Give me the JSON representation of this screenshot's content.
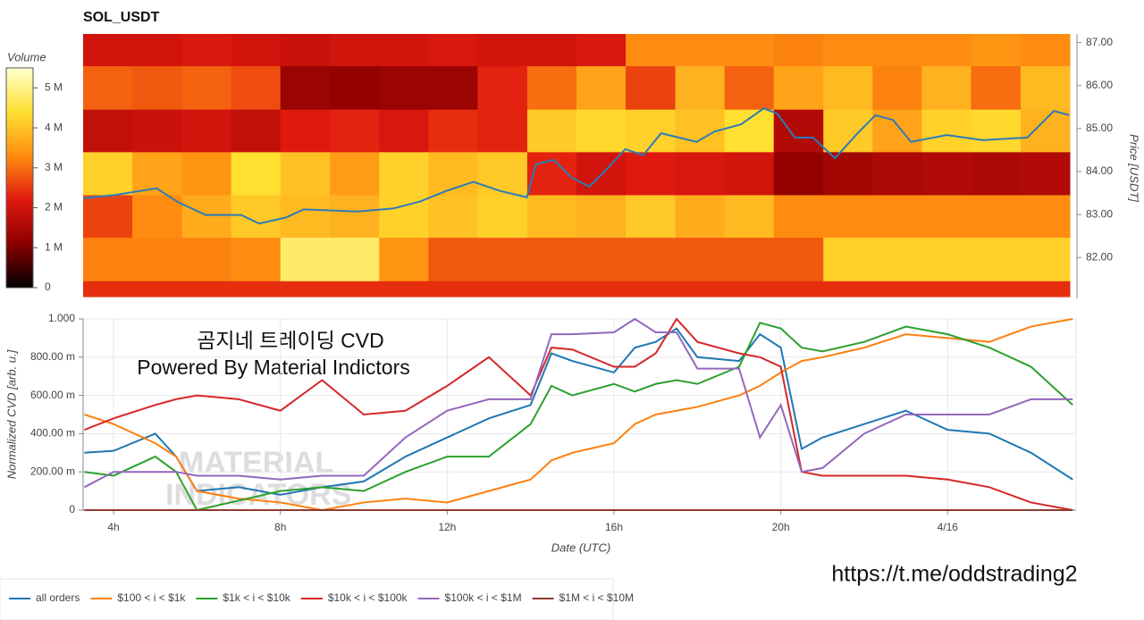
{
  "chart_data": [
    {
      "type": "heatmap",
      "title": "SOL_USDT",
      "x_bins": [
        3.27,
        4.45,
        5.64,
        6.82,
        8.0,
        9.19,
        10.37,
        11.55,
        12.73,
        13.92,
        15.1,
        16.28,
        17.47,
        18.65,
        19.83,
        21.02,
        22.2,
        23.38,
        24.56,
        25.75,
        26.93
      ],
      "y_bins": [
        81.09,
        81.46,
        82.47,
        83.46,
        84.46,
        85.45,
        86.46,
        87.2
      ],
      "values": [
        [
          2.4,
          2.4,
          2.4,
          2.4,
          2.4,
          2.4,
          2.4,
          2.4,
          2.4,
          2.4,
          2.4,
          2.4,
          2.4,
          2.4,
          2.4,
          2.4,
          2.4,
          2.4,
          2.4,
          2.4
        ],
        [
          3.2,
          3.2,
          3.2,
          3.3,
          4.8,
          4.8,
          3.4,
          2.8,
          2.8,
          2.8,
          2.8,
          2.8,
          2.8,
          2.8,
          2.8,
          4.2,
          4.2,
          4.2,
          4.2,
          4.2
        ],
        [
          2.6,
          3.3,
          3.7,
          4.1,
          3.9,
          3.8,
          4.2,
          4.0,
          4.2,
          3.9,
          3.8,
          4.1,
          3.7,
          3.9,
          3.3,
          3.3,
          3.3,
          3.3,
          3.3,
          3.3
        ],
        [
          4.2,
          3.6,
          3.4,
          4.4,
          4.0,
          3.5,
          4.2,
          3.9,
          4.1,
          2.3,
          2.0,
          2.2,
          2.1,
          2.0,
          1.2,
          1.4,
          1.5,
          1.6,
          1.5,
          1.6
        ],
        [
          1.8,
          1.9,
          2.0,
          1.8,
          2.2,
          2.3,
          2.1,
          2.4,
          2.3,
          4.1,
          4.3,
          4.2,
          4.0,
          4.4,
          1.6,
          4.1,
          3.6,
          4.2,
          4.3,
          3.8
        ],
        [
          2.9,
          2.8,
          2.9,
          2.7,
          1.3,
          1.2,
          1.3,
          1.3,
          2.3,
          3.0,
          3.6,
          2.6,
          3.8,
          2.9,
          3.6,
          3.9,
          3.2,
          3.8,
          3.0,
          3.9
        ],
        [
          2.0,
          2.0,
          2.1,
          2.0,
          1.9,
          2.0,
          2.0,
          2.1,
          2.0,
          2.0,
          2.1,
          3.3,
          3.3,
          3.3,
          3.2,
          3.3,
          3.3,
          3.3,
          3.4,
          3.3
        ]
      ],
      "colormap": [
        "#000000",
        "#8b0000",
        "#e0190f",
        "#ff8c10",
        "#ffe030",
        "#ffffd0"
      ],
      "colorbar": {
        "label": "Volume",
        "lim": [
          0,
          5.5
        ],
        "ticks": [
          0,
          {
            "value": 1,
            "label": "1 M"
          },
          {
            "value": 2,
            "label": "2 M"
          },
          {
            "value": 3,
            "label": "3 M"
          },
          {
            "value": 4,
            "label": "4 M"
          },
          {
            "value": 5,
            "label": "5 M"
          }
        ]
      },
      "xlim": [
        3.27,
        27.08
      ],
      "ylim": [
        81.05,
        87.2
      ],
      "ylabel": "Price [USDT]",
      "yticks": [
        {
          "value": 82,
          "label": "82.00"
        },
        {
          "value": 83,
          "label": "83.00"
        },
        {
          "value": 84,
          "label": "84.00"
        },
        {
          "value": 85,
          "label": "85.00"
        },
        {
          "value": 86,
          "label": "86.00"
        },
        {
          "value": 87,
          "label": "87.00"
        }
      ],
      "line": {
        "color": "#2b7bb9",
        "x": [
          3.27,
          4,
          5.03,
          5.56,
          6.21,
          7.06,
          7.49,
          8.13,
          8.56,
          9.85,
          10.7,
          11.34,
          11.98,
          12.63,
          13.27,
          13.91,
          14.13,
          14.56,
          14.98,
          15.41,
          15.84,
          16.27,
          16.7,
          17.13,
          17.98,
          18.41,
          19.05,
          19.59,
          19.91,
          20.34,
          20.77,
          21.3,
          21.84,
          22.27,
          22.69,
          23.12,
          23.98,
          24.84,
          25.91,
          26.55,
          26.91
        ],
        "values": [
          83.38,
          83.45,
          83.61,
          83.28,
          82.99,
          82.99,
          82.79,
          82.93,
          83.12,
          83.07,
          83.14,
          83.3,
          83.55,
          83.76,
          83.55,
          83.4,
          84.17,
          84.27,
          83.86,
          83.65,
          84.07,
          84.52,
          84.38,
          84.89,
          84.69,
          84.93,
          85.1,
          85.47,
          85.35,
          84.79,
          84.79,
          84.31,
          84.89,
          85.31,
          85.2,
          84.69,
          84.85,
          84.73,
          84.79,
          85.41,
          85.31
        ]
      }
    },
    {
      "type": "line",
      "xlabel": "Date (UTC)",
      "ylabel": "Normalized CVD [arb. u.]",
      "xlim": [
        3.27,
        27.08
      ],
      "ylim": [
        0,
        1
      ],
      "xticks": [
        {
          "value": 4,
          "label": "4h"
        },
        {
          "value": 8,
          "label": "8h"
        },
        {
          "value": 12,
          "label": "12h"
        },
        {
          "value": 16,
          "label": "16h"
        },
        {
          "value": 20,
          "label": "20h"
        },
        {
          "value": 24,
          "label": "4/16"
        }
      ],
      "yticks": [
        0,
        {
          "value": 0.2,
          "label": "200.00 m"
        },
        {
          "value": 0.4,
          "label": "400.00 m"
        },
        {
          "value": 0.6,
          "label": "600.00 m"
        },
        {
          "value": 0.8,
          "label": "800.00 m"
        },
        {
          "value": 1,
          "label": "1.000"
        }
      ],
      "grid": true,
      "legend": "bottom-left",
      "x": [
        3.3,
        4,
        5,
        5.5,
        6,
        7,
        8,
        9,
        10,
        11,
        12,
        13,
        14,
        14.5,
        15,
        16,
        16.5,
        17,
        17.5,
        18,
        19,
        19.5,
        20,
        20.5,
        21,
        22,
        23,
        24,
        25,
        26,
        27
      ],
      "series": [
        {
          "name": "all orders",
          "color": "#1f77b4",
          "values": [
            0.3,
            0.31,
            0.4,
            0.28,
            0.1,
            0.12,
            0.08,
            0.12,
            0.15,
            0.28,
            0.38,
            0.48,
            0.55,
            0.82,
            0.78,
            0.72,
            0.85,
            0.88,
            0.95,
            0.8,
            0.78,
            0.92,
            0.85,
            0.32,
            0.38,
            0.45,
            0.52,
            0.42,
            0.4,
            0.3,
            0.16
          ]
        },
        {
          "name": "$100 < i < $1k",
          "color": "#ff7f0e",
          "values": [
            0.5,
            0.45,
            0.35,
            0.28,
            0.1,
            0.06,
            0.04,
            0.0,
            0.04,
            0.06,
            0.04,
            0.1,
            0.16,
            0.26,
            0.3,
            0.35,
            0.45,
            0.5,
            0.52,
            0.54,
            0.6,
            0.65,
            0.72,
            0.78,
            0.8,
            0.85,
            0.92,
            0.9,
            0.88,
            0.96,
            1.0
          ]
        },
        {
          "name": "$1k < i < $10k",
          "color": "#2ca02c",
          "values": [
            0.2,
            0.18,
            0.28,
            0.2,
            0.0,
            0.05,
            0.1,
            0.12,
            0.1,
            0.2,
            0.28,
            0.28,
            0.45,
            0.65,
            0.6,
            0.66,
            0.62,
            0.66,
            0.68,
            0.66,
            0.75,
            0.98,
            0.95,
            0.85,
            0.83,
            0.88,
            0.96,
            0.92,
            0.85,
            0.75,
            0.55
          ]
        },
        {
          "name": "$10k < i < $100k",
          "color": "#d62728",
          "values": [
            0.42,
            0.48,
            0.55,
            0.58,
            0.6,
            0.58,
            0.52,
            0.68,
            0.5,
            0.52,
            0.65,
            0.8,
            0.6,
            0.85,
            0.84,
            0.75,
            0.75,
            0.82,
            1.0,
            0.88,
            0.82,
            0.8,
            0.75,
            0.2,
            0.18,
            0.18,
            0.18,
            0.16,
            0.12,
            0.04,
            0.0
          ]
        },
        {
          "name": "$100k < i < $1M",
          "color": "#9467bd",
          "values": [
            0.12,
            0.2,
            0.2,
            0.2,
            0.18,
            0.18,
            0.16,
            0.18,
            0.18,
            0.38,
            0.52,
            0.58,
            0.58,
            0.92,
            0.92,
            0.93,
            1.0,
            0.93,
            0.93,
            0.74,
            0.74,
            0.38,
            0.55,
            0.2,
            0.22,
            0.4,
            0.5,
            0.5,
            0.5,
            0.58,
            0.58
          ]
        },
        {
          "name": "$1M < i < $10M",
          "color": "#8c3b2e",
          "values": [
            0,
            0,
            0,
            0,
            0,
            0,
            0,
            0,
            0,
            0,
            0,
            0,
            0,
            0,
            0,
            0,
            0,
            0,
            0,
            0,
            0,
            0,
            0,
            0,
            0,
            0,
            0,
            0,
            0,
            0,
            0
          ]
        }
      ],
      "annotations": [
        "곰지네 트레이딩 CVD",
        "Powered By Material Indictors"
      ],
      "watermark": [
        "MATERIAL",
        "INDICATORS"
      ]
    }
  ],
  "footer_link": "https://t.me/oddstrading2"
}
